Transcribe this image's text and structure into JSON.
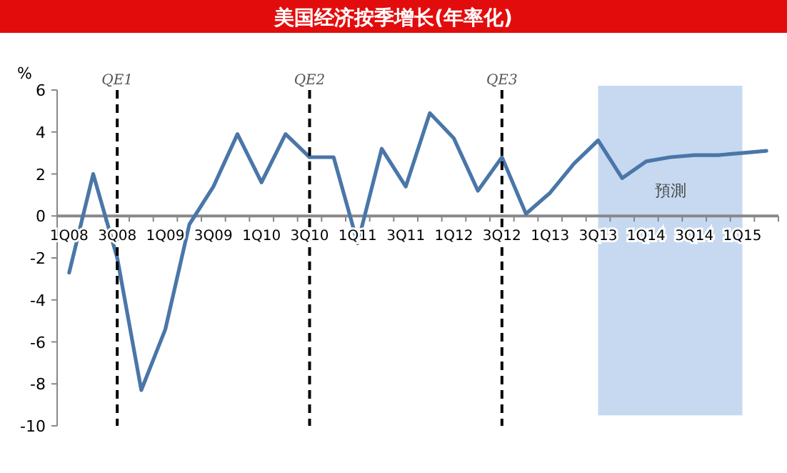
{
  "chart_data": {
    "type": "line",
    "title": "美国经济按季增长(年率化)",
    "ylabel": "%",
    "categories": [
      "1Q08",
      null,
      "3Q08",
      null,
      "1Q09",
      null,
      "3Q09",
      null,
      "1Q10",
      null,
      "3Q10",
      null,
      "1Q11",
      null,
      "3Q11",
      null,
      "1Q12",
      null,
      "3Q12",
      null,
      "1Q13",
      null,
      "3Q13",
      null,
      "1Q14",
      null,
      "3Q14",
      null,
      "1Q15",
      null
    ],
    "series": [
      {
        "color": "#4a76a8",
        "values": [
          -2.7,
          2.0,
          -2.0,
          -8.3,
          -5.4,
          -0.4,
          1.4,
          3.9,
          1.6,
          3.9,
          2.8,
          2.8,
          -1.3,
          3.2,
          1.4,
          4.9,
          3.7,
          1.2,
          2.8,
          0.1,
          1.1,
          2.5,
          3.6,
          1.8,
          2.6,
          2.8,
          2.9,
          2.9,
          3.0,
          3.1
        ]
      }
    ],
    "ylim": [
      -10,
      6
    ],
    "yticks": [
      -10,
      -8,
      -6,
      -4,
      -2,
      0,
      2,
      4,
      6
    ],
    "ref_lines": [
      {
        "axis": "x",
        "value": "3Q08",
        "label": "QE1",
        "color": "#000000",
        "line_style": "dashed"
      },
      {
        "axis": "x",
        "value": "3Q10",
        "label": "QE2",
        "color": "#000000",
        "line_style": "dashed"
      },
      {
        "axis": "x",
        "value": "3Q12",
        "label": "QE3",
        "color": "#000000",
        "line_style": "dashed"
      }
    ],
    "bands": [
      {
        "axis": "x",
        "from": "3Q13",
        "to": "1Q15",
        "label": "預測",
        "color": "#c6d9f1"
      }
    ],
    "grid": false,
    "marker": "none",
    "line_style": "solid"
  }
}
